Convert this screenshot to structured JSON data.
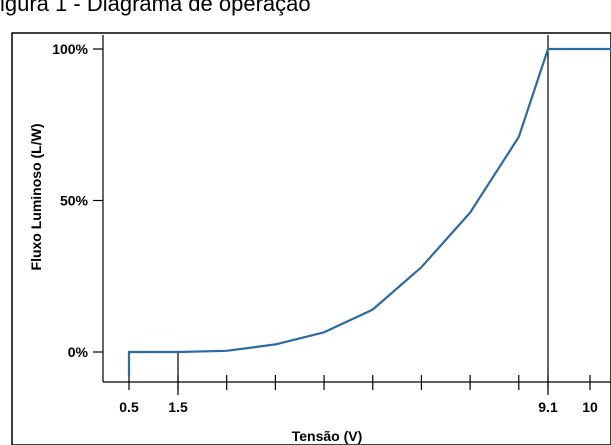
{
  "header_text": "igura 1 - Diagrama de operação",
  "chart_data": {
    "type": "line",
    "title": "",
    "xlabel": "Tensão (V)",
    "ylabel": "Fluxo Luminoso (L/W)",
    "xlim": [
      0,
      10.25
    ],
    "ylim": [
      -8,
      100
    ],
    "x_tick_labels": [
      {
        "x": 0.5,
        "label": "0.5"
      },
      {
        "x": 1.5,
        "label": "1.5"
      },
      {
        "x": 9.1,
        "label": "9.1"
      },
      {
        "x": 10,
        "label": "10"
      }
    ],
    "x_minor_ticks": [
      0.5,
      1.5,
      2.5,
      3.5,
      4.5,
      5.5,
      6.5,
      7.5,
      8.5,
      9.1,
      10
    ],
    "y_tick_labels": [
      {
        "y": 0,
        "label": "0%"
      },
      {
        "y": 50,
        "label": "50%"
      },
      {
        "y": 100,
        "label": "100%"
      }
    ],
    "reference_lines_x": [
      1.5,
      9.1
    ],
    "grid": false,
    "line_color": "#2c6aa5",
    "series": [
      {
        "points": [
          [
            0.5,
            -8
          ],
          [
            0.5,
            0
          ],
          [
            1.5,
            0
          ],
          [
            2.5,
            0.4
          ],
          [
            3.5,
            2.5
          ],
          [
            4.5,
            6.5
          ],
          [
            5.5,
            14
          ],
          [
            6.5,
            28
          ],
          [
            7.5,
            46
          ],
          [
            8.5,
            71
          ],
          [
            9.1,
            100
          ],
          [
            10.25,
            100
          ]
        ]
      }
    ]
  }
}
